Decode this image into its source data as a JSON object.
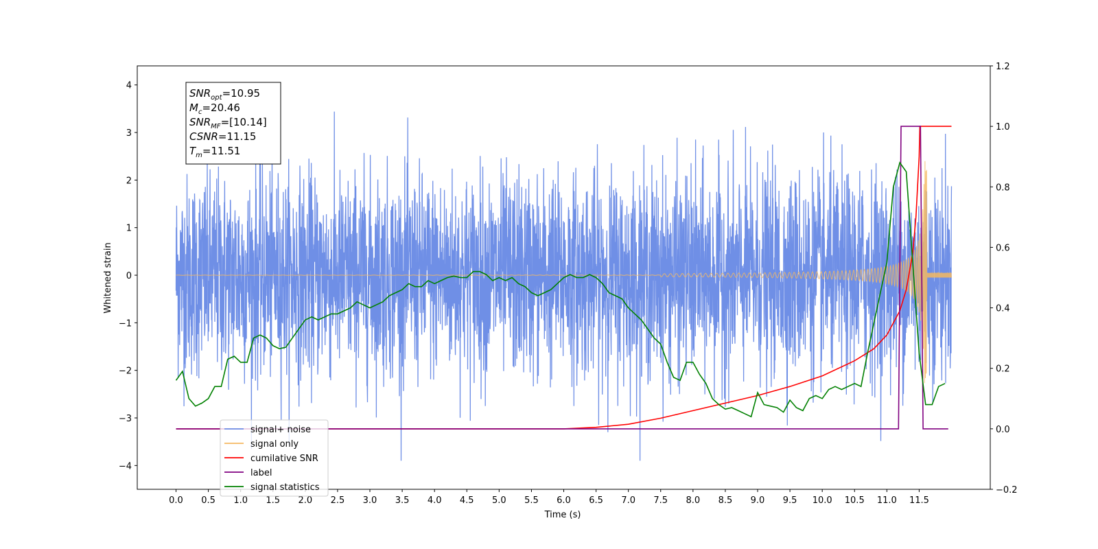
{
  "chart_data": {
    "type": "line",
    "title": "",
    "xlabel": "Time (s)",
    "ylabel": "Whitened strain",
    "ylabel_right": "",
    "xlim": [
      -0.6,
      12.6
    ],
    "ylim": [
      -4.5,
      4.4
    ],
    "ylim_right": [
      -0.2,
      1.2
    ],
    "grid": false,
    "legend_position": "bottom-left",
    "x_ticks": [
      "0.0",
      "0.5",
      "1.0",
      "1.5",
      "2.0",
      "2.5",
      "3.0",
      "3.5",
      "4.0",
      "4.5",
      "5.0",
      "5.5",
      "6.0",
      "6.5",
      "7.0",
      "7.5",
      "8.0",
      "8.5",
      "9.0",
      "9.5",
      "10.0",
      "10.5",
      "11.0",
      "11.5"
    ],
    "y_ticks": [
      "-4",
      "-3",
      "-2",
      "-1",
      "0",
      "1",
      "2",
      "3",
      "4"
    ],
    "y_ticks_right": [
      "-0.2",
      "0.0",
      "0.2",
      "0.4",
      "0.6",
      "0.8",
      "1.0",
      "1.2"
    ],
    "annotation": {
      "lines": [
        {
          "base": "SNR",
          "sub": "opt",
          "rest": "=10.95"
        },
        {
          "base": "M",
          "sub": "c",
          "rest": "=20.46"
        },
        {
          "base": "SNR",
          "sub": "MF",
          "rest": "=[10.14]"
        },
        {
          "base": "CSNR",
          "sub": "",
          "rest": "=11.15"
        },
        {
          "base": "T",
          "sub": "m",
          "rest": "=11.51"
        }
      ]
    },
    "series": [
      {
        "name": "signal+ noise",
        "color": "#6f8fe6",
        "axis": "left",
        "description": "whitened noise, amplitude roughly -4 to 4 over 0 to 12 s"
      },
      {
        "name": "signal only",
        "color": "#f5b860",
        "axis": "left",
        "description": "chirp growing toward merger near 11.5 s"
      },
      {
        "name": "cumilative SNR",
        "color": "#ff0000",
        "axis": "right",
        "x": [
          0,
          6.0,
          6.5,
          7.0,
          7.5,
          8.0,
          8.5,
          9.0,
          9.5,
          10.0,
          10.5,
          10.8,
          11.0,
          11.2,
          11.3,
          11.4,
          11.45,
          11.5,
          11.51,
          12.0
        ],
        "y": [
          0.0,
          0.0,
          0.005,
          0.015,
          0.035,
          0.06,
          0.085,
          0.11,
          0.14,
          0.175,
          0.225,
          0.265,
          0.31,
          0.39,
          0.46,
          0.58,
          0.7,
          0.9,
          1.0,
          1.0
        ]
      },
      {
        "name": "label",
        "color": "#800080",
        "axis": "right",
        "x": [
          0,
          11.18,
          11.22,
          11.52,
          11.56,
          11.95
        ],
        "y": [
          0.0,
          0.0,
          1.0,
          1.0,
          0.0,
          0.0
        ]
      },
      {
        "name": "signal statistics",
        "color": "#008000",
        "axis": "right",
        "x": [
          0,
          0.1,
          0.2,
          0.3,
          0.4,
          0.5,
          0.6,
          0.7,
          0.8,
          0.9,
          1.0,
          1.1,
          1.2,
          1.3,
          1.4,
          1.5,
          1.6,
          1.7,
          1.8,
          1.9,
          2.0,
          2.1,
          2.2,
          2.3,
          2.4,
          2.5,
          2.6,
          2.7,
          2.8,
          2.9,
          3.0,
          3.1,
          3.2,
          3.3,
          3.4,
          3.5,
          3.6,
          3.7,
          3.8,
          3.9,
          4.0,
          4.1,
          4.2,
          4.3,
          4.4,
          4.5,
          4.6,
          4.7,
          4.8,
          4.9,
          5.0,
          5.1,
          5.2,
          5.3,
          5.4,
          5.5,
          5.6,
          5.7,
          5.8,
          5.9,
          6.0,
          6.1,
          6.2,
          6.3,
          6.4,
          6.5,
          6.6,
          6.7,
          6.8,
          6.9,
          7.0,
          7.1,
          7.2,
          7.3,
          7.4,
          7.5,
          7.6,
          7.7,
          7.8,
          7.9,
          8.0,
          8.1,
          8.2,
          8.3,
          8.4,
          8.5,
          8.6,
          8.7,
          8.8,
          8.9,
          9.0,
          9.1,
          9.2,
          9.3,
          9.4,
          9.5,
          9.6,
          9.7,
          9.8,
          9.9,
          10.0,
          10.1,
          10.2,
          10.3,
          10.4,
          10.5,
          10.6,
          10.7,
          10.8,
          10.9,
          11.0,
          11.1,
          11.2,
          11.3,
          11.4,
          11.5,
          11.6,
          11.7,
          11.8,
          11.9
        ],
        "y": [
          0.16,
          0.19,
          0.1,
          0.075,
          0.085,
          0.1,
          0.14,
          0.14,
          0.23,
          0.24,
          0.22,
          0.22,
          0.3,
          0.31,
          0.3,
          0.275,
          0.265,
          0.27,
          0.3,
          0.33,
          0.36,
          0.37,
          0.36,
          0.37,
          0.38,
          0.38,
          0.39,
          0.4,
          0.42,
          0.41,
          0.4,
          0.41,
          0.42,
          0.44,
          0.45,
          0.46,
          0.48,
          0.47,
          0.47,
          0.49,
          0.48,
          0.49,
          0.5,
          0.505,
          0.5,
          0.5,
          0.52,
          0.52,
          0.51,
          0.49,
          0.5,
          0.49,
          0.5,
          0.48,
          0.47,
          0.45,
          0.44,
          0.45,
          0.46,
          0.48,
          0.5,
          0.51,
          0.5,
          0.5,
          0.51,
          0.5,
          0.48,
          0.45,
          0.44,
          0.43,
          0.4,
          0.38,
          0.36,
          0.33,
          0.3,
          0.28,
          0.22,
          0.17,
          0.16,
          0.22,
          0.22,
          0.18,
          0.15,
          0.1,
          0.08,
          0.065,
          0.07,
          0.06,
          0.05,
          0.04,
          0.12,
          0.08,
          0.075,
          0.07,
          0.055,
          0.095,
          0.07,
          0.06,
          0.1,
          0.11,
          0.1,
          0.13,
          0.14,
          0.13,
          0.14,
          0.15,
          0.14,
          0.25,
          0.35,
          0.45,
          0.55,
          0.8,
          0.88,
          0.85,
          0.55,
          0.25,
          0.08,
          0.08,
          0.14,
          0.15
        ]
      }
    ]
  }
}
